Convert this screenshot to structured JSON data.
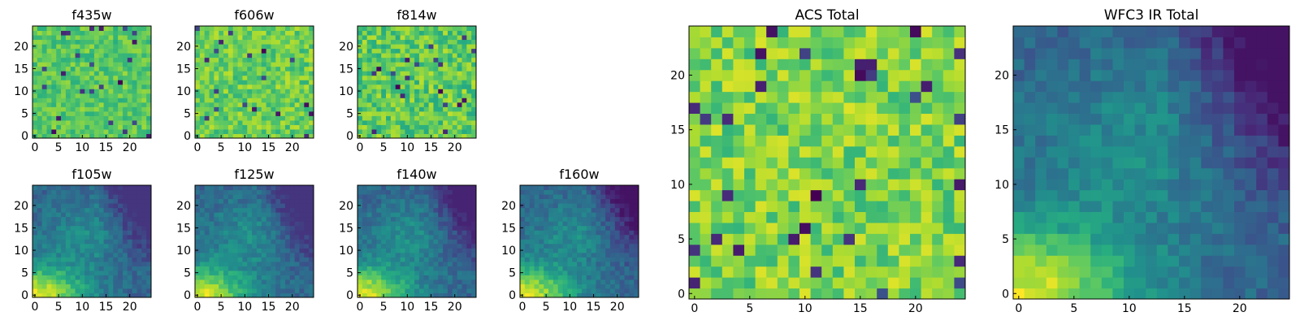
{
  "figure": {
    "background": "#ffffff",
    "colormap": "viridis",
    "colormap_stops": [
      "#440154",
      "#472d7b",
      "#3b528b",
      "#2c728e",
      "#21918c",
      "#28ae80",
      "#5ec962",
      "#addc30",
      "#fde725"
    ]
  },
  "chart_data": [
    {
      "type": "heatmap",
      "title": "f435w",
      "grid": [
        25,
        25
      ],
      "xlim": [
        0,
        24
      ],
      "ylim": [
        0,
        24
      ],
      "xticks": [
        "0",
        "5",
        "10",
        "15",
        "20"
      ],
      "yticks": [
        "0",
        "5",
        "10",
        "15",
        "20"
      ],
      "colormap": "viridis",
      "pattern": "noise",
      "level_range": [
        0.55,
        0.85
      ],
      "approx_level_at_origin": 0.7
    },
    {
      "type": "heatmap",
      "title": "f606w",
      "grid": [
        25,
        25
      ],
      "xlim": [
        0,
        24
      ],
      "ylim": [
        0,
        24
      ],
      "xticks": [
        "0",
        "5",
        "10",
        "15",
        "20"
      ],
      "yticks": [
        "0",
        "5",
        "10",
        "15",
        "20"
      ],
      "colormap": "viridis",
      "pattern": "noise",
      "level_range": [
        0.55,
        0.9
      ],
      "approx_level_at_origin": 0.72
    },
    {
      "type": "heatmap",
      "title": "f814w",
      "grid": [
        25,
        25
      ],
      "xlim": [
        0,
        24
      ],
      "ylim": [
        0,
        24
      ],
      "xticks": [
        "0",
        "5",
        "10",
        "15",
        "20"
      ],
      "yticks": [
        "0",
        "5",
        "10",
        "15",
        "20"
      ],
      "colormap": "viridis",
      "pattern": "noise",
      "level_range": [
        0.5,
        0.9
      ],
      "approx_level_at_origin": 0.85
    },
    {
      "type": "heatmap",
      "title": "f105w",
      "grid": [
        25,
        25
      ],
      "xlim": [
        0,
        24
      ],
      "ylim": [
        0,
        24
      ],
      "xticks": [
        "0",
        "5",
        "10",
        "15",
        "20"
      ],
      "yticks": [
        "0",
        "5",
        "10",
        "15",
        "20"
      ],
      "colormap": "viridis",
      "pattern": "bright-lower-left",
      "level_range": [
        0.15,
        1.0
      ],
      "approx_level_at_origin": 0.95
    },
    {
      "type": "heatmap",
      "title": "f125w",
      "grid": [
        25,
        25
      ],
      "xlim": [
        0,
        24
      ],
      "ylim": [
        0,
        24
      ],
      "xticks": [
        "0",
        "5",
        "10",
        "15",
        "20"
      ],
      "yticks": [
        "0",
        "5",
        "10",
        "15",
        "20"
      ],
      "colormap": "viridis",
      "pattern": "bright-lower-left",
      "level_range": [
        0.15,
        1.0
      ],
      "approx_level_at_origin": 0.95
    },
    {
      "type": "heatmap",
      "title": "f140w",
      "grid": [
        25,
        25
      ],
      "xlim": [
        0,
        24
      ],
      "ylim": [
        0,
        24
      ],
      "xticks": [
        "0",
        "5",
        "10",
        "15",
        "20"
      ],
      "yticks": [
        "0",
        "5",
        "10",
        "15",
        "20"
      ],
      "colormap": "viridis",
      "pattern": "bright-lower-left",
      "level_range": [
        0.1,
        1.0
      ],
      "approx_level_at_origin": 0.95
    },
    {
      "type": "heatmap",
      "title": "f160w",
      "grid": [
        25,
        25
      ],
      "xlim": [
        0,
        24
      ],
      "ylim": [
        0,
        24
      ],
      "xticks": [
        "0",
        "5",
        "10",
        "15",
        "20"
      ],
      "yticks": [
        "0",
        "5",
        "10",
        "15",
        "20"
      ],
      "colormap": "viridis",
      "pattern": "bright-lower-left",
      "level_range": [
        0.05,
        1.0
      ],
      "approx_level_at_origin": 0.95
    },
    {
      "type": "heatmap",
      "title": "ACS Total",
      "grid": [
        25,
        25
      ],
      "xlim": [
        0,
        24
      ],
      "ylim": [
        0,
        24
      ],
      "xticks": [
        "0",
        "5",
        "10",
        "15",
        "20"
      ],
      "yticks": [
        "0",
        "5",
        "10",
        "15",
        "20"
      ],
      "colormap": "viridis",
      "pattern": "noise",
      "level_range": [
        0.55,
        0.95
      ],
      "approx_level_at_origin": 0.8
    },
    {
      "type": "heatmap",
      "title": "WFC3 IR Total",
      "grid": [
        25,
        25
      ],
      "xlim": [
        0,
        24
      ],
      "ylim": [
        0,
        24
      ],
      "xticks": [
        "0",
        "5",
        "10",
        "15",
        "20"
      ],
      "yticks": [
        "0",
        "5",
        "10",
        "15",
        "20"
      ],
      "colormap": "viridis",
      "pattern": "bright-lower-left",
      "level_range": [
        0.05,
        1.0
      ],
      "approx_level_at_origin": 0.95
    }
  ]
}
